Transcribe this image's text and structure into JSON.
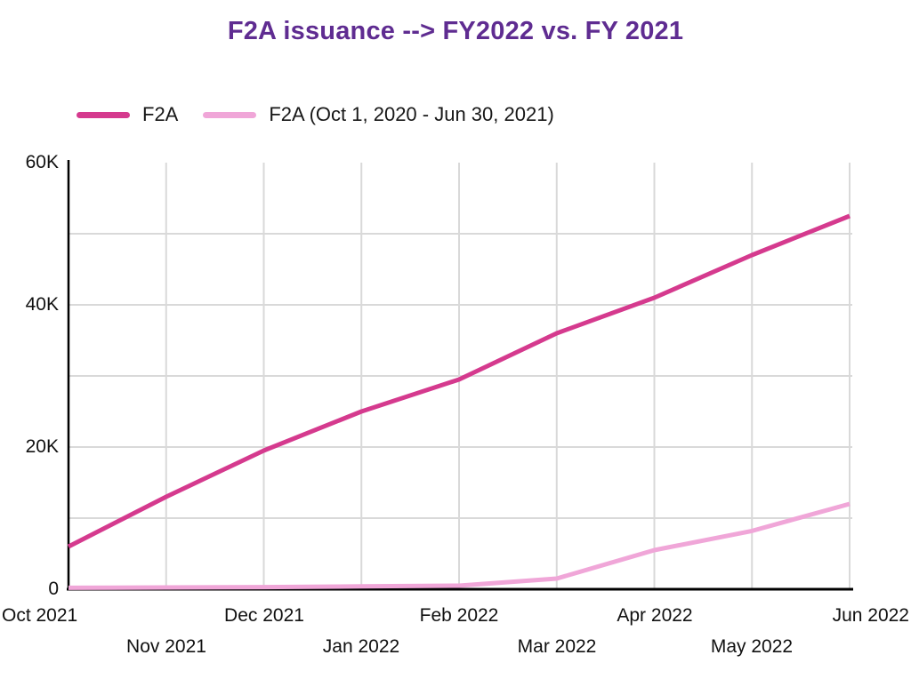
{
  "title": {
    "text": "F2A issuance --> FY2022 vs. FY 2021",
    "color": "#5f2c91"
  },
  "legend": {
    "items": [
      {
        "label": "F2A",
        "color": "#d53a8e"
      },
      {
        "label": "F2A (Oct 1, 2020 - Jun 30, 2021)",
        "color": "#f0a6d8"
      }
    ]
  },
  "chart_data": {
    "type": "line",
    "x": [
      "Oct 2021",
      "Nov 2021",
      "Dec 2021",
      "Jan 2022",
      "Feb 2022",
      "Mar 2022",
      "Apr 2022",
      "May 2022",
      "Jun 2022"
    ],
    "series": [
      {
        "name": "F2A",
        "color": "#d53a8e",
        "values": [
          6000,
          13000,
          19500,
          25000,
          29500,
          36000,
          41000,
          47000,
          52500
        ]
      },
      {
        "name": "F2A (Oct 1, 2020 - Jun 30, 2021)",
        "color": "#f0a6d8",
        "values": [
          200,
          250,
          300,
          400,
          500,
          1500,
          5500,
          8200,
          12000
        ]
      }
    ],
    "title": "F2A issuance --> FY2022 vs. FY 2021",
    "xlabel": "",
    "ylabel": "",
    "ylim": [
      0,
      60000
    ],
    "y_ticks": [
      {
        "value": 0,
        "label": "0"
      },
      {
        "value": 20000,
        "label": "20K"
      },
      {
        "value": 40000,
        "label": "40K"
      },
      {
        "value": 60000,
        "label": "60K"
      }
    ],
    "y_gridline_values": [
      10000,
      20000,
      30000,
      40000,
      50000
    ],
    "grid": "on",
    "grid_color": "#d9d9d9",
    "axis_color": "#000000",
    "legend_position": "top-left",
    "x_labels_staggered": true
  }
}
